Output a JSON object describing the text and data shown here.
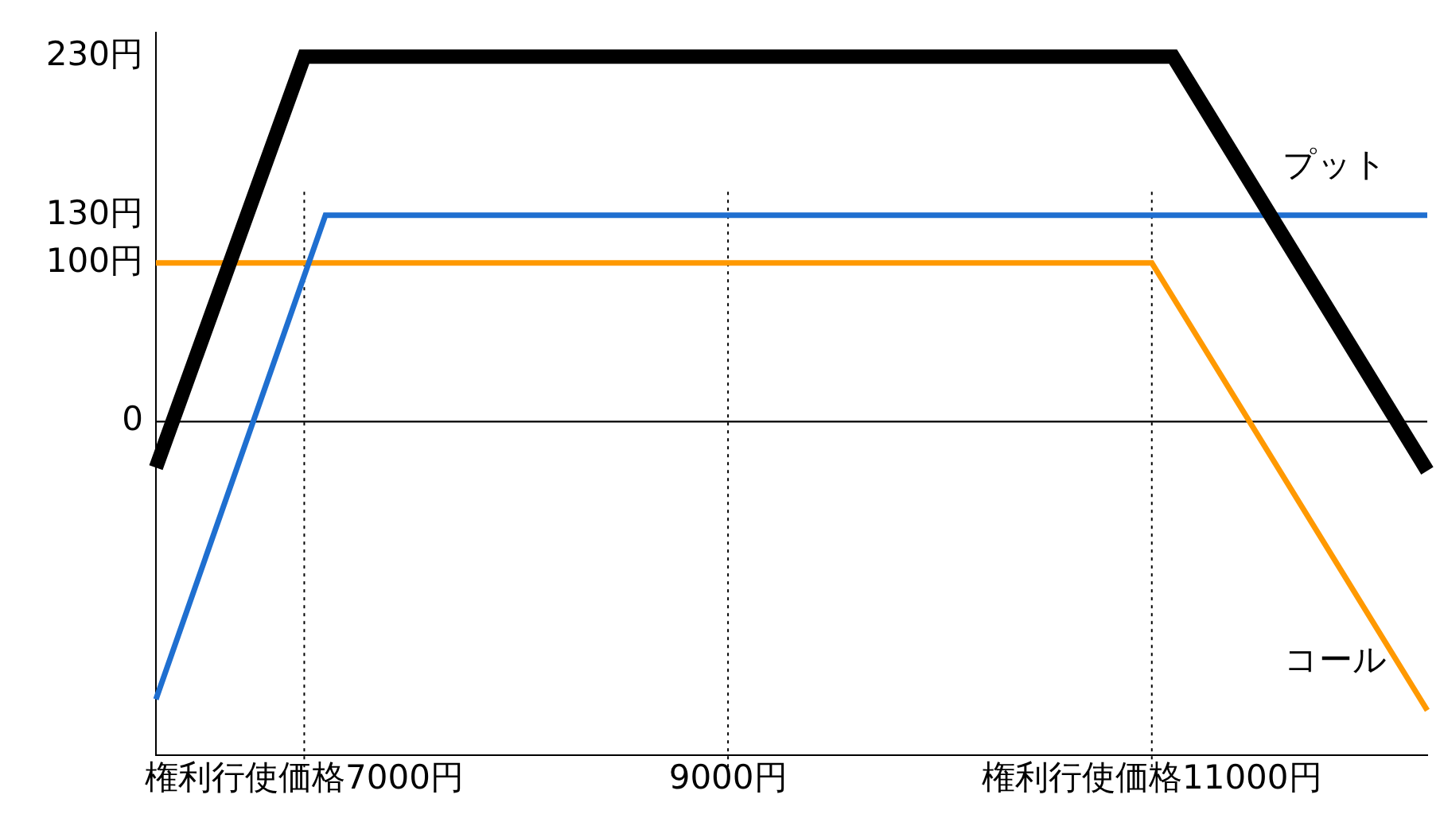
{
  "chart_data": {
    "type": "line",
    "ylim": [
      -210,
      245
    ],
    "categories": [
      null,
      null,
      null,
      null,
      null,
      null,
      null,
      "権利行使価格7000円",
      null,
      null,
      null,
      null,
      null,
      null,
      null,
      null,
      null,
      null,
      null,
      null,
      null,
      null,
      null,
      null,
      null,
      null,
      null,
      "9000円",
      null,
      null,
      null,
      null,
      null,
      null,
      null,
      null,
      null,
      null,
      null,
      null,
      null,
      null,
      null,
      null,
      null,
      null,
      null,
      "権利行使価格11000円",
      null,
      null,
      null,
      null,
      null,
      null,
      null,
      null,
      null,
      null,
      null,
      null,
      null
    ],
    "yticks": [
      0,
      {
        "value": 100,
        "label": "100円"
      },
      {
        "value": 130,
        "label": "130円"
      },
      {
        "value": 230,
        "label": "230円"
      }
    ],
    "series": [
      {
        "color": "#000000",
        "values": [
          -29,
          null,
          null,
          null,
          null,
          null,
          null,
          230,
          null,
          null,
          null,
          null,
          null,
          null,
          null,
          null,
          null,
          null,
          null,
          null,
          null,
          null,
          null,
          null,
          null,
          null,
          null,
          null,
          null,
          null,
          null,
          null,
          null,
          null,
          null,
          null,
          null,
          null,
          null,
          null,
          null,
          null,
          null,
          null,
          null,
          null,
          null,
          null,
          230,
          null,
          null,
          null,
          null,
          null,
          null,
          null,
          null,
          null,
          null,
          null,
          -31
        ]
      },
      {
        "name": "プット",
        "color": "#1f6fd0",
        "values": [
          -175,
          null,
          null,
          null,
          null,
          null,
          null,
          null,
          130,
          null,
          null,
          null,
          null,
          null,
          null,
          null,
          null,
          null,
          null,
          null,
          null,
          null,
          null,
          null,
          null,
          null,
          null,
          null,
          null,
          null,
          null,
          null,
          null,
          null,
          null,
          null,
          null,
          null,
          null,
          null,
          null,
          null,
          null,
          null,
          null,
          null,
          null,
          null,
          null,
          null,
          null,
          null,
          null,
          null,
          null,
          null,
          null,
          null,
          null,
          null,
          130
        ]
      },
      {
        "name": "コール",
        "color": "#ff9900",
        "values": [
          100,
          null,
          null,
          null,
          null,
          null,
          null,
          null,
          null,
          null,
          null,
          null,
          null,
          null,
          null,
          null,
          null,
          null,
          null,
          null,
          null,
          null,
          null,
          null,
          null,
          null,
          null,
          null,
          null,
          null,
          null,
          null,
          null,
          null,
          null,
          null,
          null,
          null,
          null,
          null,
          null,
          null,
          null,
          null,
          null,
          null,
          null,
          100,
          null,
          null,
          null,
          null,
          null,
          null,
          null,
          null,
          null,
          null,
          null,
          null,
          -182
        ]
      }
    ],
    "ref_lines": [
      {
        "axis": "x",
        "value": "権利行使価格7000円",
        "line_style": "dotted"
      },
      {
        "axis": "x",
        "value": "9000円",
        "line_style": "dotted"
      },
      {
        "axis": "x",
        "value": "権利行使価格11000円",
        "line_style": "dotted"
      }
    ],
    "grid": false,
    "legend": false,
    "marker": "none",
    "line_style": "solid"
  }
}
